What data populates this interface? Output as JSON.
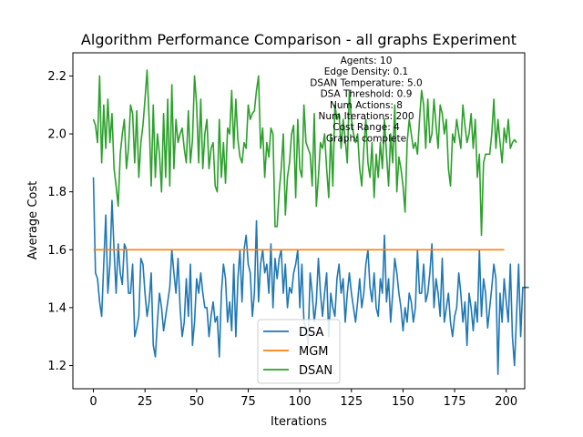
{
  "chart_data": {
    "type": "line",
    "title": "Algorithm Performance Comparison - all graphs Experiment",
    "xlabel": "Iterations",
    "ylabel": "Average Cost",
    "xlim": [
      -9.95,
      208.95
    ],
    "ylim": [
      1.12,
      2.28
    ],
    "xticks": [
      0,
      25,
      50,
      75,
      100,
      125,
      150,
      175,
      200
    ],
    "yticks": [
      1.2,
      1.4,
      1.6,
      1.8,
      2.0,
      2.2
    ],
    "ytick_labels": [
      "1.2",
      "1.4",
      "1.6",
      "1.8",
      "2.0",
      "2.2"
    ],
    "grid": false,
    "legend_position": "lower center",
    "annotation_lines": [
      "Agents: 10",
      "Edge Density: 0.1",
      "DSAN Temperature: 5.0",
      "DSA Threshold: 0.9",
      "Num Actions: 8",
      "Num Iterations: 200",
      "Cost Range: 4",
      "Graph: complete"
    ],
    "series": [
      {
        "name": "DSA",
        "color": "#1f77b4",
        "x_start": 0,
        "values": [
          1.85,
          1.52,
          1.5,
          1.42,
          1.37,
          1.55,
          1.72,
          1.45,
          1.55,
          1.77,
          1.6,
          1.45,
          1.62,
          1.52,
          1.48,
          1.62,
          1.6,
          1.45,
          1.45,
          1.55,
          1.3,
          1.33,
          1.37,
          1.57,
          1.55,
          1.45,
          1.37,
          1.42,
          1.52,
          1.27,
          1.23,
          1.35,
          1.45,
          1.4,
          1.32,
          1.37,
          1.42,
          1.47,
          1.6,
          1.52,
          1.45,
          1.57,
          1.4,
          1.3,
          1.35,
          1.5,
          1.37,
          1.55,
          1.27,
          1.35,
          1.5,
          1.45,
          1.52,
          1.45,
          1.4,
          1.4,
          1.3,
          1.37,
          1.42,
          1.35,
          1.37,
          1.23,
          1.45,
          1.55,
          1.5,
          1.35,
          1.42,
          1.32,
          1.55,
          1.3,
          1.5,
          1.6,
          1.42,
          1.6,
          1.65,
          1.55,
          1.52,
          1.37,
          1.45,
          1.7,
          1.42,
          1.55,
          1.6,
          1.52,
          1.55,
          1.45,
          1.62,
          1.4,
          1.57,
          1.5,
          1.57,
          1.6,
          1.45,
          1.55,
          1.4,
          1.47,
          1.45,
          1.52,
          1.55,
          1.6,
          1.4,
          1.55,
          1.35,
          1.33,
          1.27,
          1.52,
          1.45,
          1.35,
          1.42,
          1.57,
          1.45,
          1.37,
          1.45,
          1.52,
          1.3,
          1.45,
          1.4,
          1.37,
          1.5,
          1.55,
          1.45,
          1.5,
          1.35,
          1.45,
          1.52,
          1.45,
          1.4,
          1.35,
          1.42,
          1.5,
          1.4,
          1.45,
          1.55,
          1.6,
          1.47,
          1.42,
          1.52,
          1.4,
          1.37,
          1.5,
          1.45,
          1.65,
          1.42,
          1.5,
          1.35,
          1.45,
          1.57,
          1.52,
          1.45,
          1.4,
          1.32,
          1.4,
          1.35,
          1.45,
          1.42,
          1.35,
          1.4,
          1.6,
          1.45,
          1.45,
          1.55,
          1.42,
          1.45,
          1.52,
          1.62,
          1.4,
          1.5,
          1.45,
          1.37,
          1.57,
          1.35,
          1.4,
          1.45,
          1.35,
          1.3,
          1.37,
          1.4,
          1.52,
          1.45,
          1.35,
          1.42,
          1.27,
          1.45,
          1.4,
          1.32,
          1.42,
          1.35,
          1.6,
          1.37,
          1.5,
          1.45,
          1.33,
          1.4,
          1.47,
          1.55,
          1.5,
          1.17,
          1.45,
          1.35,
          1.5,
          1.42,
          1.35,
          1.55,
          1.3,
          1.2,
          1.37,
          1.55,
          1.3,
          1.47,
          1.47,
          1.47,
          1.47
        ]
      },
      {
        "name": "MGM",
        "color": "#ff7f0e",
        "x": [
          0,
          199
        ],
        "values": [
          1.6,
          1.6
        ]
      },
      {
        "name": "DSAN",
        "color": "#2ca02c",
        "x_start": 0,
        "values": [
          2.05,
          2.03,
          1.97,
          2.2,
          1.9,
          2.1,
          1.95,
          2.12,
          1.97,
          2.07,
          1.88,
          1.82,
          1.75,
          1.93,
          2.0,
          2.05,
          1.88,
          1.95,
          2.1,
          2.07,
          1.9,
          2.08,
          1.85,
          1.97,
          2.03,
          2.12,
          2.22,
          2.05,
          1.82,
          2.1,
          1.85,
          2.0,
          1.93,
          1.8,
          2.07,
          1.85,
          2.12,
          1.82,
          2.17,
          1.88,
          2.05,
          1.97,
          2.0,
          2.02,
          1.95,
          1.9,
          2.08,
          1.9,
          1.98,
          2.2,
          2.1,
          1.9,
          2.12,
          1.88,
          2.0,
          2.05,
          1.88,
          1.95,
          1.97,
          1.82,
          1.8,
          2.05,
          1.85,
          1.97,
          1.83,
          2.02,
          2.0,
          2.15,
          1.95,
          2.12,
          1.98,
          1.92,
          1.9,
          1.97,
          1.95,
          2.1,
          2.05,
          2.07,
          2.08,
          2.15,
          2.2,
          1.95,
          2.02,
          1.85,
          1.97,
          1.92,
          2.02,
          2.0,
          1.68,
          1.68,
          1.8,
          1.88,
          2.0,
          1.72,
          1.85,
          1.9,
          2.0,
          2.03,
          1.78,
          2.05,
          1.88,
          1.85,
          2.1,
          1.97,
          1.95,
          1.93,
          1.82,
          2.07,
          1.75,
          1.85,
          1.97,
          1.95,
          2.0,
          1.88,
          1.78,
          2.0,
          1.82,
          2.1,
          2.05,
          2.07,
          1.95,
          2.05,
          1.98,
          1.9,
          2.15,
          2.05,
          2.0,
          1.97,
          2.0,
          1.88,
          1.82,
          1.95,
          2.05,
          1.9,
          1.85,
          1.97,
          1.78,
          1.93,
          1.85,
          1.97,
          1.88,
          2.05,
          1.93,
          1.82,
          2.0,
          1.9,
          2.1,
          1.8,
          1.92,
          1.88,
          1.82,
          1.73,
          1.97,
          2.05,
          2.0,
          1.95,
          1.97,
          1.93,
          2.05,
          2.15,
          2.1,
          1.95,
          2.12,
          1.97,
          2.0,
          2.12,
          2.03,
          1.95,
          2.1,
          2.07,
          2.0,
          2.05,
          1.88,
          1.82,
          2.0,
          1.97,
          2.05,
          2.0,
          1.95,
          2.1,
          2.03,
          1.97,
          2.0,
          2.07,
          1.95,
          2.05,
          1.85,
          1.93,
          1.65,
          1.9,
          1.93,
          1.93,
          1.93,
          2.0,
          2.12,
          1.95,
          2.05,
          1.97,
          1.9,
          2.02,
          1.97,
          2.05,
          1.95,
          1.97,
          1.98,
          1.97
        ]
      }
    ]
  }
}
